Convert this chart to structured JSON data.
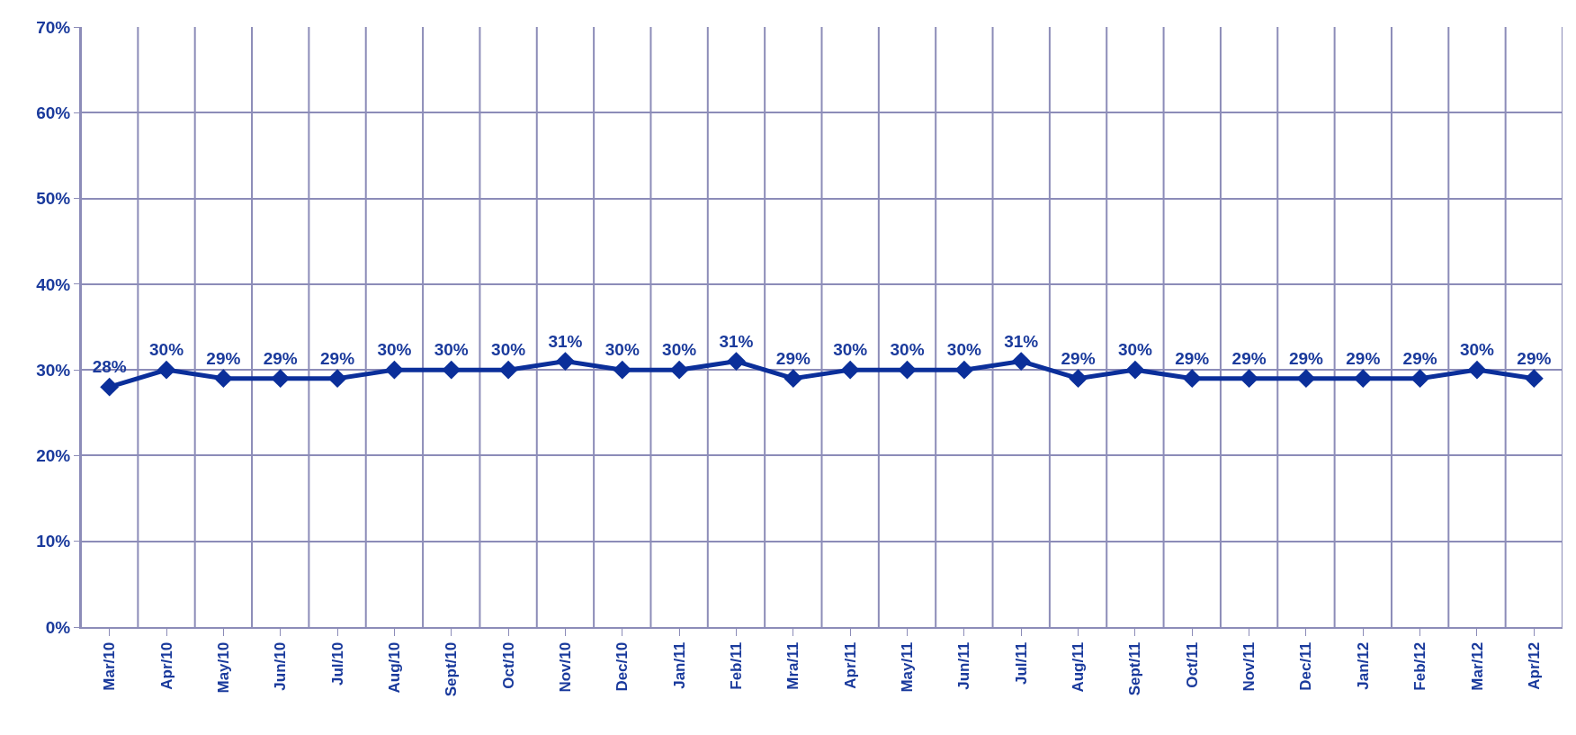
{
  "chart_data": {
    "type": "line",
    "categories": [
      "Mar/10",
      "Apr/10",
      "May/10",
      "Jun/10",
      "Jul/10",
      "Aug/10",
      "Sept/10",
      "Oct/10",
      "Nov/10",
      "Dec/10",
      "Jan/11",
      "Feb/11",
      "Mra/11",
      "Apr/11",
      "May/11",
      "Jun/11",
      "Jul/11",
      "Aug/11",
      "Sept/11",
      "Oct/11",
      "Nov/11",
      "Dec/11",
      "Jan/12",
      "Feb/12",
      "Mar/12",
      "Apr/12"
    ],
    "series": [
      {
        "color": "#0b2f9a",
        "values": [
          28,
          30,
          29,
          29,
          29,
          30,
          30,
          30,
          31,
          30,
          30,
          31,
          29,
          30,
          30,
          30,
          31,
          29,
          30,
          29,
          29,
          29,
          29,
          29,
          30,
          29
        ],
        "value_labels": [
          "28%",
          "30%",
          "29%",
          "29%",
          "29%",
          "30%",
          "30%",
          "30%",
          "31%",
          "30%",
          "30%",
          "31%",
          "29%",
          "30%",
          "30%",
          "30%",
          "31%",
          "29%",
          "30%",
          "29%",
          "29%",
          "29%",
          "29%",
          "29%",
          "30%",
          "29%"
        ]
      }
    ],
    "ylim": [
      0,
      70
    ],
    "yticks": [
      {
        "value": 0,
        "label": "0%"
      },
      {
        "value": 10,
        "label": "10%"
      },
      {
        "value": 20,
        "label": "20%"
      },
      {
        "value": 30,
        "label": "30%"
      },
      {
        "value": 40,
        "label": "40%"
      },
      {
        "value": 50,
        "label": "50%"
      },
      {
        "value": 60,
        "label": "60%"
      },
      {
        "value": 70,
        "label": "70%"
      }
    ],
    "grid": true,
    "marker": "diamond",
    "line_style": "solid"
  }
}
